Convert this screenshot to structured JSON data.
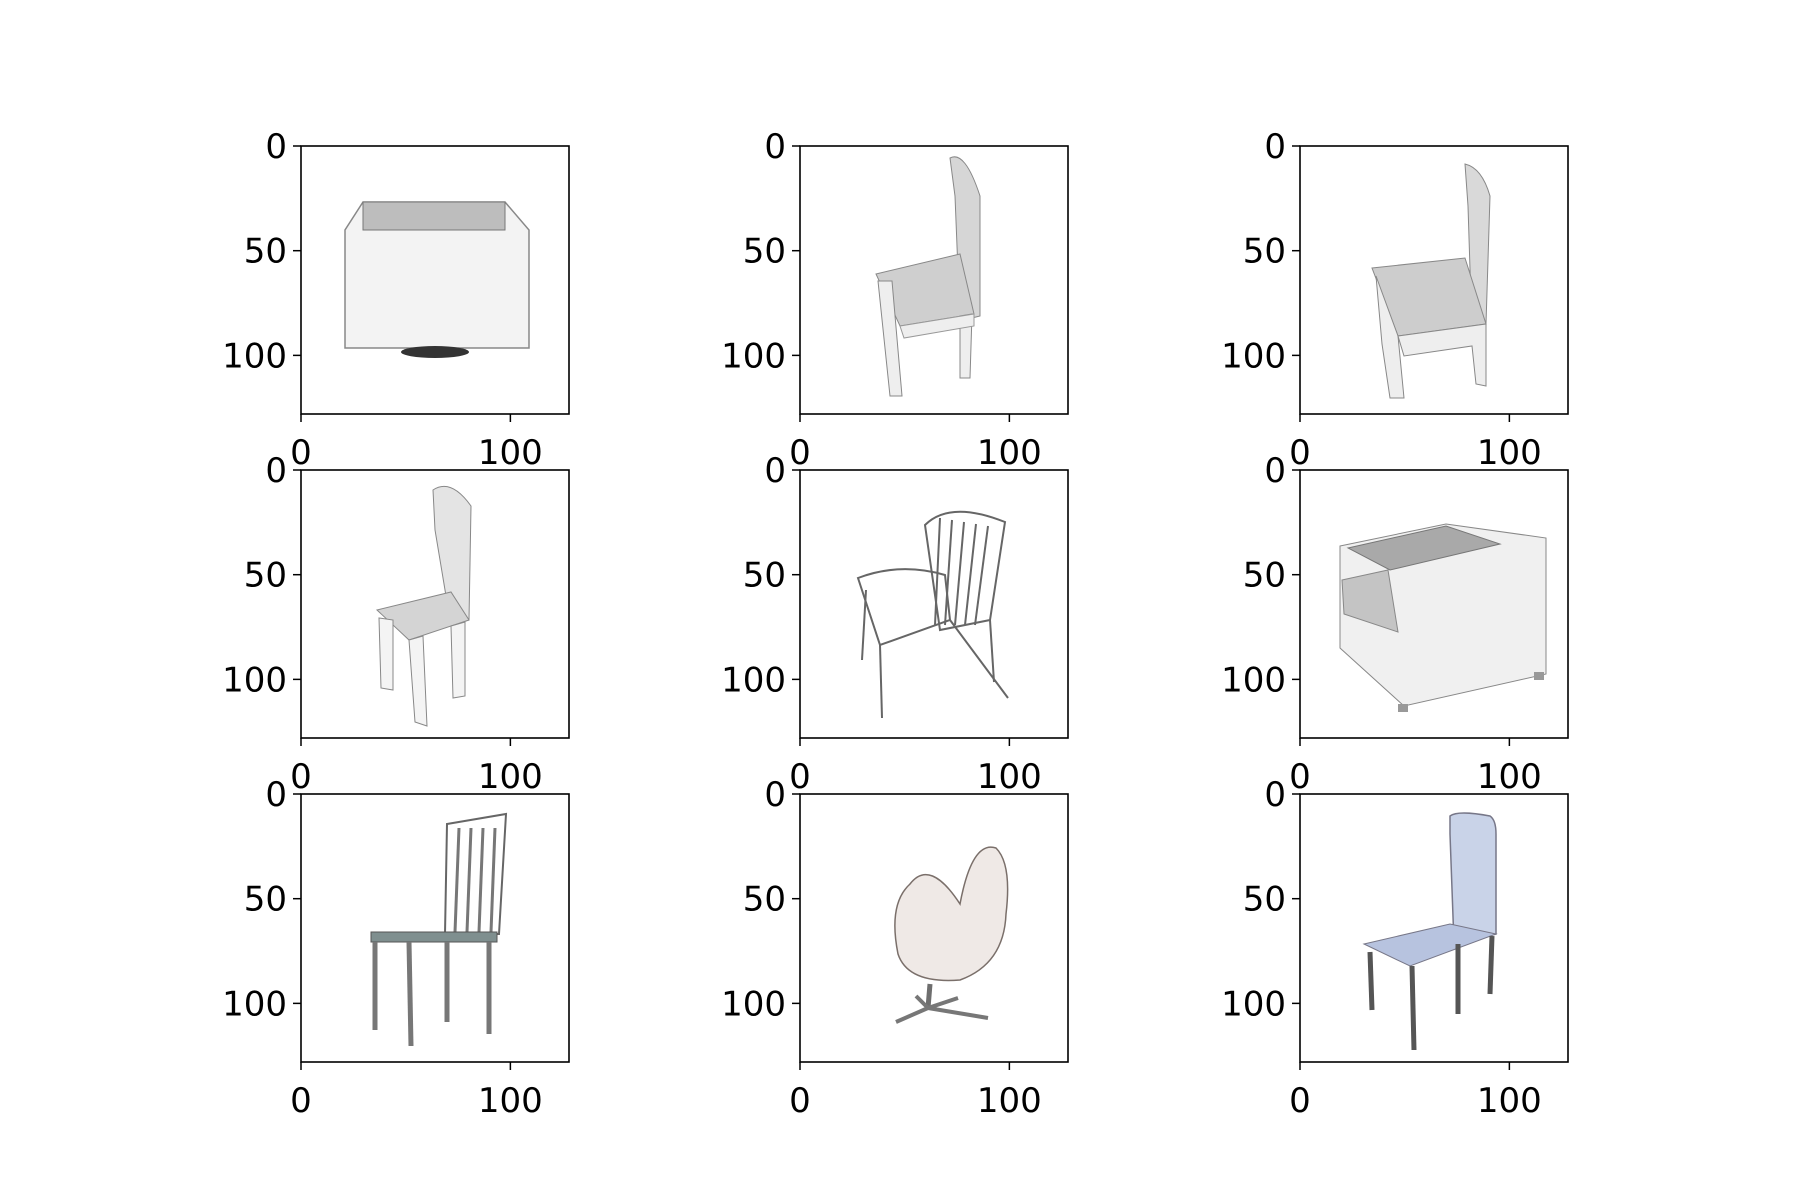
{
  "figure": {
    "layout": "3x3 grid of image subplots",
    "background": "#ffffff",
    "axis_color": "#000000",
    "x_ticks": [
      "0",
      "100"
    ],
    "y_ticks": [
      "0",
      "50",
      "100"
    ],
    "image_extent": [
      0,
      128
    ]
  },
  "panels": [
    {
      "name": "box-chair",
      "icon": "box-chair-icon",
      "tone": "#f3f3f3"
    },
    {
      "name": "curved-back-chair",
      "icon": "chair-icon",
      "tone": "#eeeeee"
    },
    {
      "name": "sled-base-chair",
      "icon": "chair-icon",
      "tone": "#eeeeee"
    },
    {
      "name": "tall-back-chair",
      "icon": "chair-icon",
      "tone": "#f4f4f4"
    },
    {
      "name": "rattan-armchair",
      "icon": "armchair-icon",
      "tone": "#ffffff"
    },
    {
      "name": "sofa-box-chair",
      "icon": "sofa-icon",
      "tone": "#f0f0f0"
    },
    {
      "name": "slat-back-chair",
      "icon": "chair-icon",
      "tone": "#f7f7f7"
    },
    {
      "name": "swan-chair",
      "icon": "lounge-chair-icon",
      "tone": "#efe9e6"
    },
    {
      "name": "blue-dining-chair",
      "icon": "chair-icon",
      "tone": "#c9d3e8"
    }
  ]
}
